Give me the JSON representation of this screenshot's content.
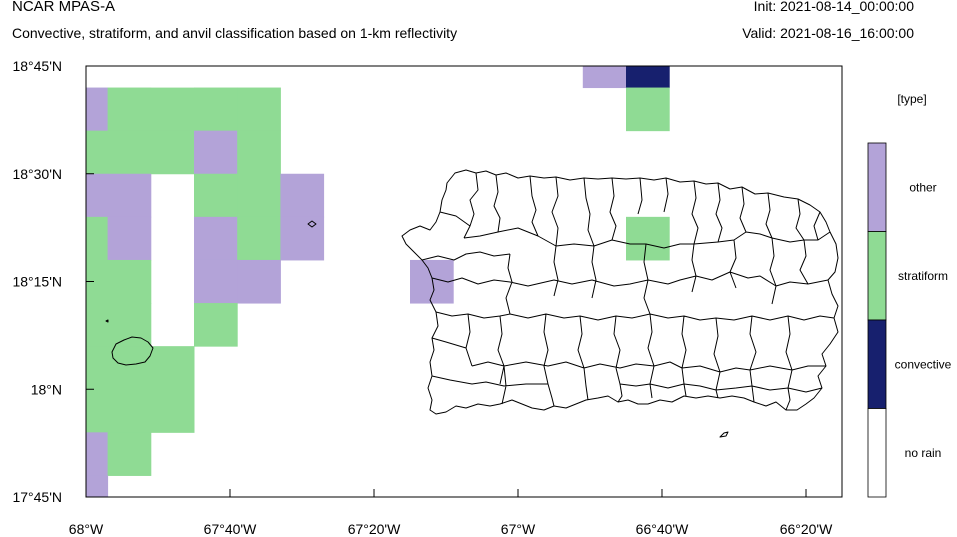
{
  "header": {
    "model": "NCAR MPAS-A",
    "subtitle": "Convective, stratiform, and anvil classification based on 1-km reflectivity",
    "init": "Init: 2021-08-14_00:00:00",
    "valid": "Valid: 2021-08-16_16:00:00"
  },
  "map": {
    "lon_range": [
      -68.0,
      -66.25
    ],
    "lat_range": [
      17.75,
      18.75
    ],
    "x_ticks": [
      {
        "lon": -68.0,
        "label": "68°W"
      },
      {
        "lon": -67.6667,
        "label": "67°40'W"
      },
      {
        "lon": -67.3333,
        "label": "67°20'W"
      },
      {
        "lon": -67.0,
        "label": "67°W"
      },
      {
        "lon": -66.6667,
        "label": "66°40'W"
      },
      {
        "lon": -66.3333,
        "label": "66°20'W"
      }
    ],
    "y_ticks": [
      {
        "lat": 18.75,
        "label": "18°45'N"
      },
      {
        "lat": 18.5,
        "label": "18°30'N"
      },
      {
        "lat": 18.25,
        "label": "18°15'N"
      },
      {
        "lat": 18.0,
        "label": "18°N"
      },
      {
        "lat": 17.75,
        "label": "17°45'N"
      }
    ],
    "cell_size_deg": 0.1,
    "cells": [
      {
        "lon": -68.0,
        "lat": 18.65,
        "type": "other"
      },
      {
        "lon": -67.9,
        "lat": 18.65,
        "type": "stratiform"
      },
      {
        "lon": -67.8,
        "lat": 18.65,
        "type": "stratiform"
      },
      {
        "lon": -67.7,
        "lat": 18.65,
        "type": "stratiform"
      },
      {
        "lon": -67.6,
        "lat": 18.65,
        "type": "stratiform"
      },
      {
        "lon": -68.0,
        "lat": 18.55,
        "type": "stratiform"
      },
      {
        "lon": -67.9,
        "lat": 18.55,
        "type": "stratiform"
      },
      {
        "lon": -67.8,
        "lat": 18.55,
        "type": "stratiform"
      },
      {
        "lon": -67.7,
        "lat": 18.55,
        "type": "other"
      },
      {
        "lon": -67.6,
        "lat": 18.55,
        "type": "stratiform"
      },
      {
        "lon": -68.0,
        "lat": 18.45,
        "type": "other"
      },
      {
        "lon": -67.9,
        "lat": 18.45,
        "type": "other"
      },
      {
        "lon": -67.7,
        "lat": 18.45,
        "type": "stratiform"
      },
      {
        "lon": -67.6,
        "lat": 18.45,
        "type": "stratiform"
      },
      {
        "lon": -67.5,
        "lat": 18.45,
        "type": "other"
      },
      {
        "lon": -68.0,
        "lat": 18.35,
        "type": "stratiform"
      },
      {
        "lon": -67.9,
        "lat": 18.35,
        "type": "other"
      },
      {
        "lon": -67.7,
        "lat": 18.35,
        "type": "other"
      },
      {
        "lon": -67.6,
        "lat": 18.35,
        "type": "stratiform"
      },
      {
        "lon": -67.5,
        "lat": 18.35,
        "type": "other"
      },
      {
        "lon": -68.0,
        "lat": 18.25,
        "type": "stratiform"
      },
      {
        "lon": -67.9,
        "lat": 18.25,
        "type": "stratiform"
      },
      {
        "lon": -67.7,
        "lat": 18.25,
        "type": "other"
      },
      {
        "lon": -67.6,
        "lat": 18.25,
        "type": "other"
      },
      {
        "lon": -67.2,
        "lat": 18.25,
        "type": "other"
      },
      {
        "lon": -68.0,
        "lat": 18.15,
        "type": "stratiform"
      },
      {
        "lon": -67.9,
        "lat": 18.15,
        "type": "stratiform"
      },
      {
        "lon": -67.7,
        "lat": 18.15,
        "type": "stratiform"
      },
      {
        "lon": -68.0,
        "lat": 18.05,
        "type": "stratiform"
      },
      {
        "lon": -67.9,
        "lat": 18.05,
        "type": "stratiform"
      },
      {
        "lon": -67.8,
        "lat": 18.05,
        "type": "stratiform"
      },
      {
        "lon": -68.0,
        "lat": 17.95,
        "type": "stratiform"
      },
      {
        "lon": -67.9,
        "lat": 17.95,
        "type": "stratiform"
      },
      {
        "lon": -67.8,
        "lat": 17.95,
        "type": "stratiform"
      },
      {
        "lon": -68.0,
        "lat": 17.85,
        "type": "other"
      },
      {
        "lon": -67.9,
        "lat": 17.85,
        "type": "stratiform"
      },
      {
        "lon": -68.0,
        "lat": 17.75,
        "type": "other"
      },
      {
        "lon": -66.8,
        "lat": 18.75,
        "type": "other"
      },
      {
        "lon": -66.7,
        "lat": 18.75,
        "type": "convective"
      },
      {
        "lon": -66.7,
        "lat": 18.65,
        "type": "stratiform"
      },
      {
        "lon": -66.7,
        "lat": 18.35,
        "type": "stratiform"
      }
    ],
    "white_cells": [
      {
        "lon": -67.8,
        "lat": 18.75
      }
    ]
  },
  "legend": {
    "title": "[type]",
    "entries": [
      {
        "label": "other",
        "color": "#b3a3d8"
      },
      {
        "label": "stratiform",
        "color": "#8fdb94"
      },
      {
        "label": "convective",
        "color": "#17206e"
      },
      {
        "label": "no rain",
        "color": "#ffffff"
      }
    ]
  },
  "colors": {
    "other": "#b3a3d8",
    "stratiform": "#8fdb94",
    "convective": "#17206e",
    "no rain": "#ffffff"
  }
}
